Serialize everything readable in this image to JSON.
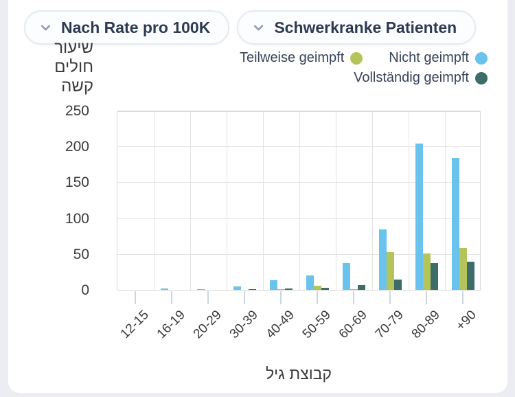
{
  "page": {
    "background": "#ebedf3",
    "card_background": "#ffffff"
  },
  "toolbar": {
    "buttons": [
      {
        "label": "Nach Rate pro 100K"
      },
      {
        "label": "Schwerkranke Patienten"
      }
    ]
  },
  "legend": {
    "items": [
      {
        "label": "Teilweise geimpft",
        "color": "#b5c45a"
      },
      {
        "label": "Nicht geimpft",
        "color": "#6ac3ec"
      },
      {
        "label": "Vollständig geimpft",
        "color": "#3d6c69"
      }
    ]
  },
  "chart_data": {
    "type": "bar",
    "categories": [
      "12-15",
      "16-19",
      "20-29",
      "30-39",
      "40-49",
      "50-59",
      "60-69",
      "70-79",
      "80-89",
      "+90"
    ],
    "series": [
      {
        "name": "Nicht geimpft",
        "color": "#6ac3ec",
        "values": [
          0,
          2,
          1,
          5,
          13,
          20,
          37,
          84,
          204,
          184
        ]
      },
      {
        "name": "Teilweise geimpft",
        "color": "#b5c45a",
        "values": [
          0,
          0,
          0,
          0,
          1,
          6,
          1,
          53,
          51,
          58
        ]
      },
      {
        "name": "Vollständig geimpft",
        "color": "#3d6c69",
        "values": [
          0,
          0,
          0,
          1,
          2,
          3,
          7,
          14,
          37,
          39
        ]
      }
    ],
    "ylabel": "שיעור חולים קשה",
    "ylabel_lines": [
      "שיעור",
      "חולים",
      "קשה"
    ],
    "xlabel": "קבוצת גיל",
    "yticks": [
      0,
      50,
      100,
      150,
      200,
      250
    ],
    "ylim": [
      0,
      250
    ],
    "grid": true,
    "legend_position": "top-right",
    "colors": {
      "grid": "#e3e3e3",
      "axis_text": "#3b3b3b",
      "tick_mark": "#c9d6e4"
    }
  }
}
